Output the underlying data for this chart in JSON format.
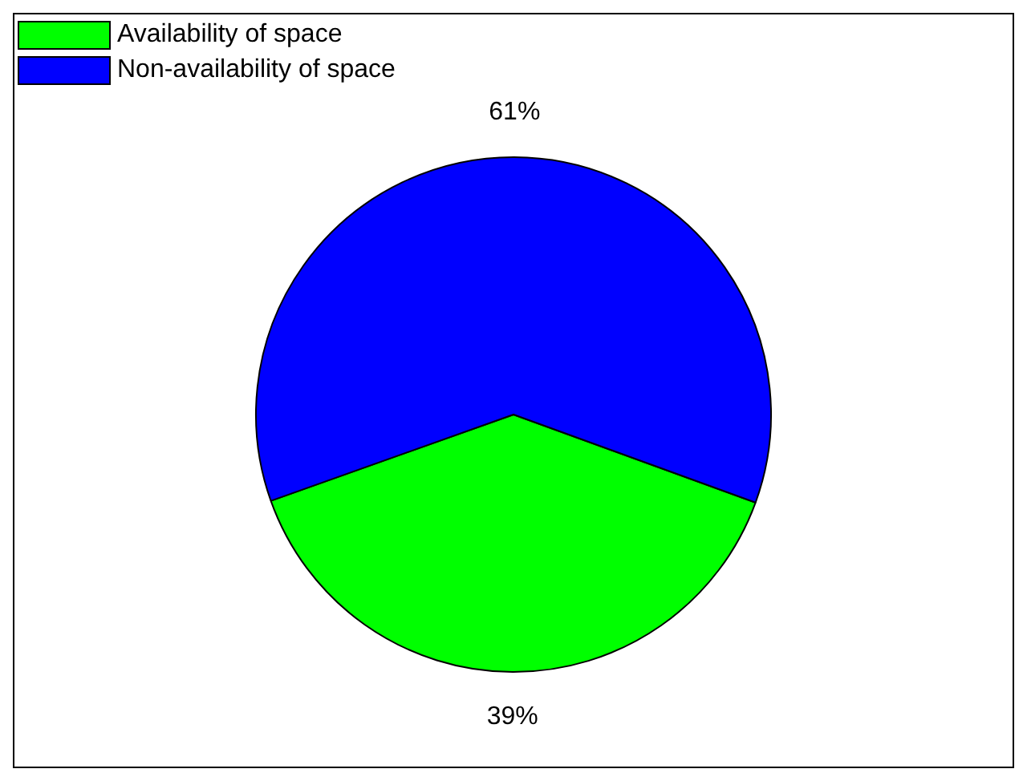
{
  "chart_data": {
    "type": "pie",
    "categories": [
      "Availability of space",
      "Non-availability of space"
    ],
    "values": [
      39,
      61
    ],
    "colors": [
      "#00ff00",
      "#0000ff"
    ],
    "value_labels": [
      "39%",
      "61%"
    ],
    "legend": "top left"
  }
}
